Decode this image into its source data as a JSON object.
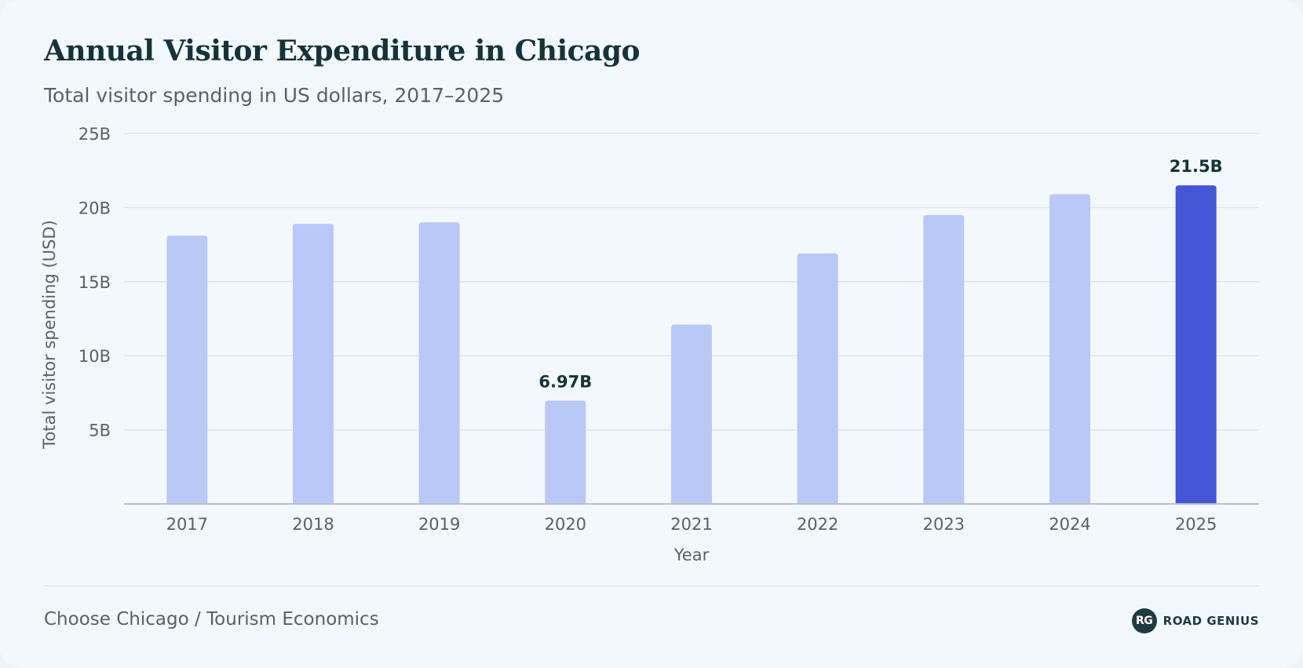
{
  "chart_data": {
    "type": "bar",
    "title": "Annual Visitor Expenditure in Chicago",
    "subtitle": "Total visitor spending in US dollars, 2017–2025",
    "xlabel": "Year",
    "ylabel": "Total visitor spending (USD)",
    "categories": [
      "2017",
      "2018",
      "2019",
      "2020",
      "2021",
      "2022",
      "2023",
      "2024",
      "2025"
    ],
    "values": [
      18.1,
      18.9,
      19.0,
      6.97,
      12.1,
      16.9,
      19.5,
      20.9,
      21.5
    ],
    "ylim": [
      0,
      25
    ],
    "yticks": [
      5,
      10,
      15,
      20,
      25
    ],
    "ytick_labels": [
      "5B",
      "10B",
      "15B",
      "20B",
      "25B"
    ],
    "data_labels": [
      {
        "category": "2020",
        "label": "6.97B"
      },
      {
        "category": "2025",
        "label": "21.5B"
      }
    ],
    "highlight_category": "2025",
    "colors": {
      "bar": "#b9c9f7",
      "highlight": "#4256d6",
      "grid": "#dde3e8",
      "axis": "#b8bec4"
    },
    "grid": true,
    "legend": "none"
  },
  "footer": {
    "source": "Choose Chicago / Tourism Economics",
    "brand_mark": "RG",
    "brand_name": "ROAD GENIUS"
  }
}
